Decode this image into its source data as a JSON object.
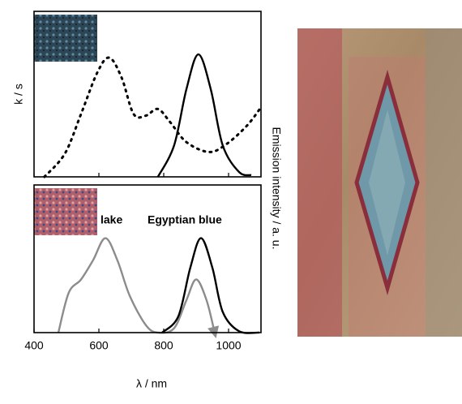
{
  "chart_data": [
    {
      "type": "line",
      "ylabel": "k / s",
      "y2label": "Emission intensity / a. u.",
      "xlim": [
        400,
        1100
      ],
      "xticks": [
        400,
        600,
        800,
        1000
      ],
      "ylim": [
        0,
        1
      ],
      "series": [
        {
          "color": "#000000",
          "style": "dotted",
          "x": [
            432,
            495,
            545,
            595,
            632,
            670,
            707,
            745,
            782,
            820,
            870,
            940,
            995,
            1057,
            1100
          ],
          "values": [
            0,
            0.14,
            0.38,
            0.63,
            0.72,
            0.6,
            0.38,
            0.37,
            0.41,
            0.33,
            0.21,
            0.15,
            0.2,
            0.31,
            0.42
          ]
        },
        {
          "color": "#000000",
          "style": "solid",
          "x": [
            782,
            832,
            870,
            907,
            945,
            982,
            1032,
            1070
          ],
          "values": [
            0,
            0.19,
            0.53,
            0.74,
            0.53,
            0.19,
            0.03,
            0.01
          ]
        }
      ]
    },
    {
      "type": "line",
      "xlabel": "λ / nm",
      "xlim": [
        400,
        1100
      ],
      "xticks": [
        400,
        600,
        800,
        1000
      ],
      "ylim": [
        0,
        1
      ],
      "series": [
        {
          "name": "lake",
          "color": "#8c8c8c",
          "style": "solid",
          "x": [
            475,
            507,
            545,
            582,
            620,
            657,
            695,
            745,
            782,
            832,
            870,
            900,
            932,
            957
          ],
          "values": [
            0,
            0.27,
            0.36,
            0.49,
            0.64,
            0.49,
            0.25,
            0.05,
            0,
            0.03,
            0.22,
            0.36,
            0.22,
            0
          ]
        },
        {
          "name": "Egyptian blue",
          "color": "#000000",
          "style": "solid",
          "x": [
            795,
            845,
            882,
            915,
            950,
            982,
            1032,
            1095
          ],
          "values": [
            0,
            0.11,
            0.44,
            0.64,
            0.44,
            0.14,
            0.01,
            0
          ]
        }
      ]
    }
  ]
}
